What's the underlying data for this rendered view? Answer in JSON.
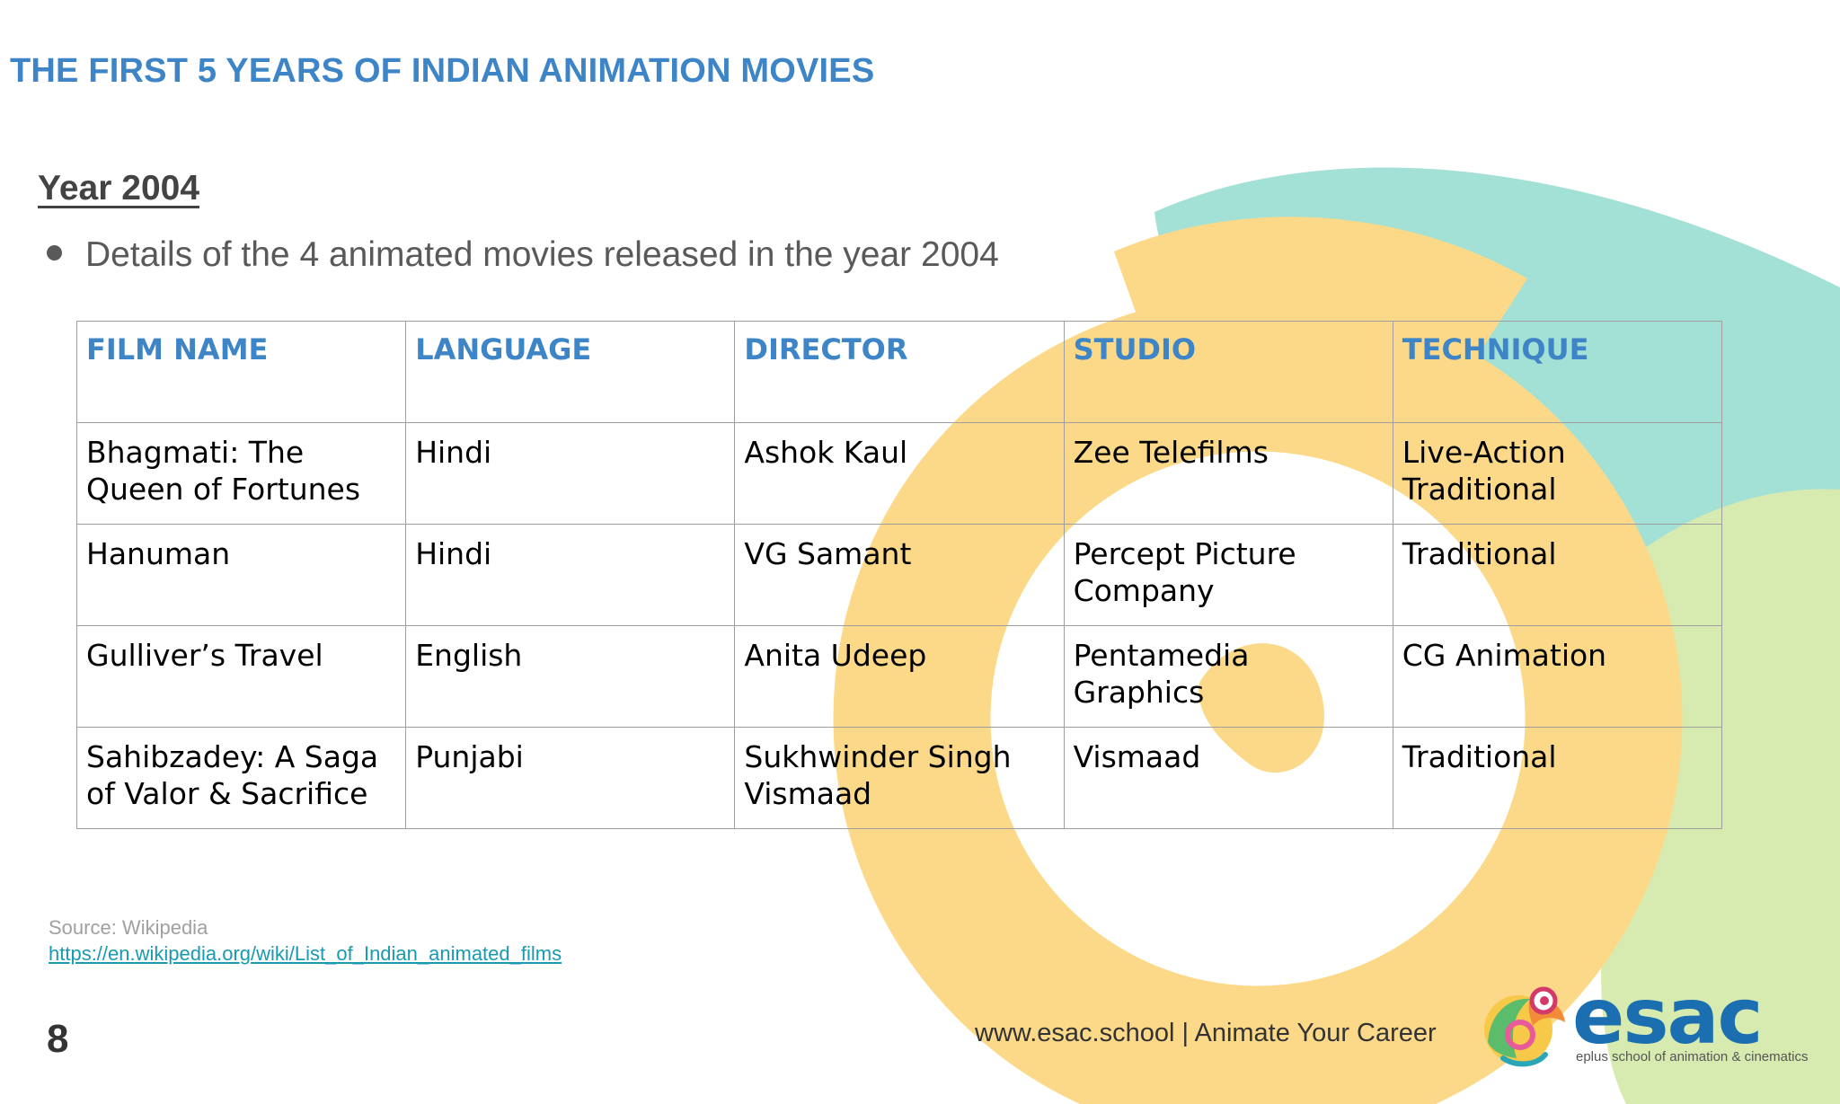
{
  "slide": {
    "title": "THE FIRST 5 YEARS OF INDIAN ANIMATION MOVIES",
    "section_heading": "Year 2004",
    "bullet": "Details of the 4 animated movies released in the year 2004"
  },
  "table": {
    "headers": [
      "FILM NAME",
      "LANGUAGE",
      "DIRECTOR",
      "STUDIO",
      "TECHNIQUE"
    ],
    "rows": [
      [
        "Bhagmati: The Queen of Fortunes",
        "Hindi",
        "Ashok Kaul",
        "Zee Telefilms",
        "Live-Action Traditional"
      ],
      [
        "Hanuman",
        "Hindi",
        "VG Samant",
        "Percept Picture Company",
        "Traditional"
      ],
      [
        "Gulliver’s Travel",
        "English",
        "Anita Udeep",
        "Pentamedia Graphics",
        "CG Animation"
      ],
      [
        "Sahibzadey: A Saga of Valor & Sacrifice",
        "Punjabi",
        "Sukhwinder Singh Vismaad",
        "Vismaad",
        "Traditional"
      ]
    ]
  },
  "source": {
    "label": "Source: Wikipedia",
    "link_text": "https://en.wikipedia.org/wiki/List_of_Indian_animated_films"
  },
  "footer": {
    "page_number": "8",
    "tagline": "www.esac.school | Animate Your Career"
  },
  "logo": {
    "wordmark": "esac",
    "tagline": "eplus school of animation & cinematics"
  },
  "colors": {
    "accent_blue": "#3d85c6",
    "swirl_yellow": "#fcd989",
    "swirl_teal": "#a3e0d5",
    "swirl_green": "#d7ebb0"
  }
}
